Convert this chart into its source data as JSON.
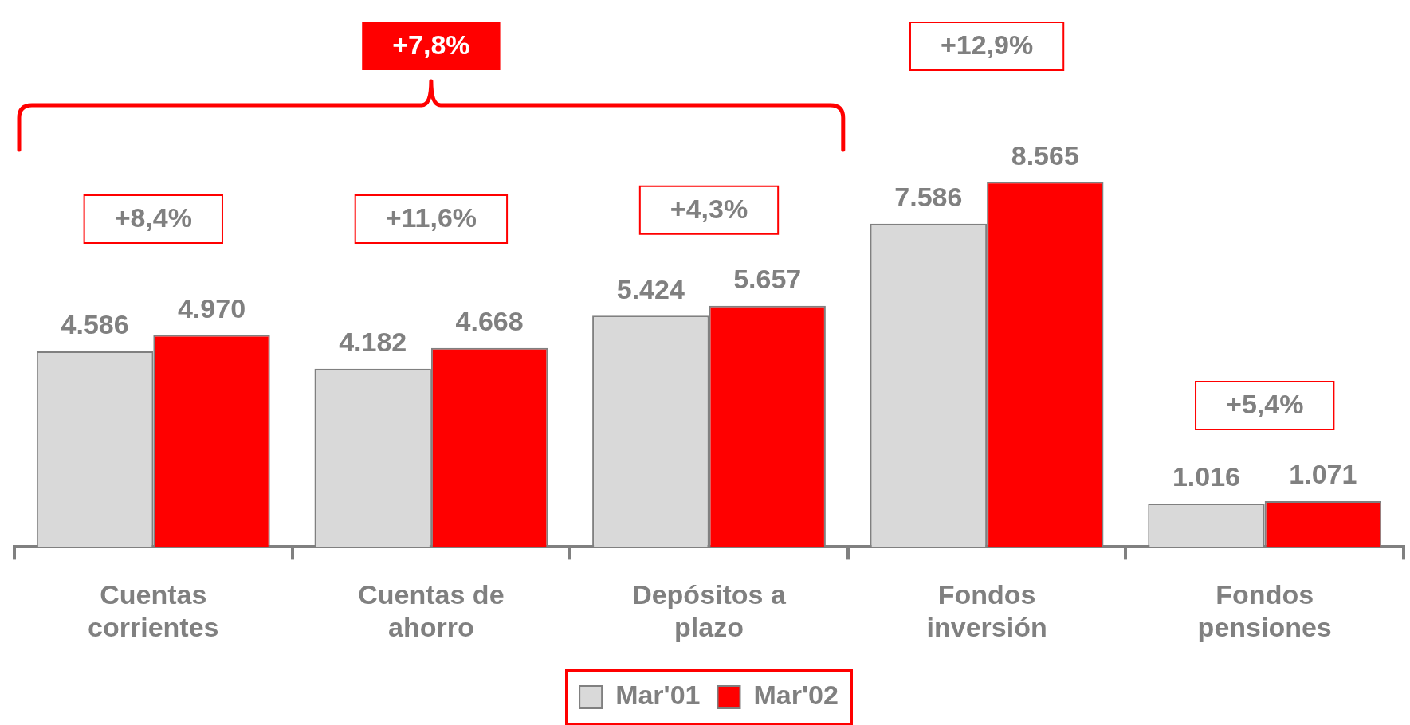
{
  "chart_data": {
    "type": "bar",
    "categories": [
      "Cuentas corrientes",
      "Cuentas de ahorro",
      "Depósitos a plazo",
      "Fondos inversión",
      "Fondos pensiones"
    ],
    "series": [
      {
        "name": "Mar'01",
        "color": "#d9d9d9",
        "values": [
          4586,
          4182,
          5424,
          7586,
          1016
        ],
        "value_labels": [
          "4.586",
          "4.182",
          "5.424",
          "7.586",
          "1.016"
        ]
      },
      {
        "name": "Mar'02",
        "color": "#ff0000",
        "values": [
          4970,
          4668,
          5657,
          8565,
          1071
        ],
        "value_labels": [
          "4.970",
          "4.668",
          "5.657",
          "8.565",
          "1.071"
        ]
      }
    ],
    "tick_labels": "x",
    "legend": "bottom",
    "annotations": [
      "+7,8%",
      "+8,4%",
      "+11,6%",
      "+4,3%",
      "+12,9%",
      "+5,4%"
    ]
  }
}
